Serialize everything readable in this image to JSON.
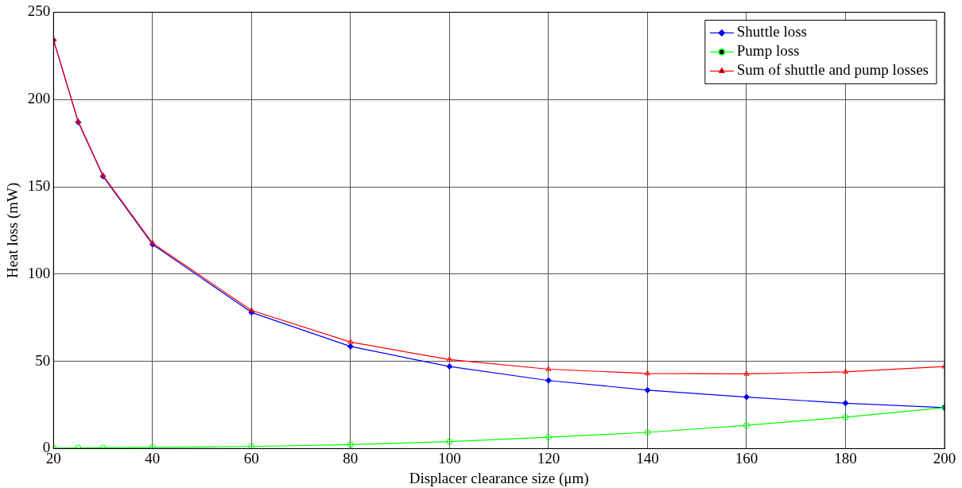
{
  "chart_data": {
    "type": "line",
    "xlabel": "Displacer clearance size (μm)",
    "ylabel": "Heat loss (mW)",
    "x": [
      20,
      25,
      30,
      40,
      60,
      80,
      100,
      120,
      140,
      160,
      180,
      200
    ],
    "series": [
      {
        "name": "Shuttle loss",
        "color": "#0000ff",
        "marker": "diamond",
        "values": [
          234,
          187,
          156,
          117,
          78,
          58.5,
          47,
          39,
          33.5,
          29.5,
          26,
          23.5
        ]
      },
      {
        "name": "Pump loss",
        "color": "#00ff00",
        "marker": "circle",
        "values": [
          0.3,
          0.4,
          0.5,
          0.7,
          1.2,
          2.3,
          4,
          6.5,
          9.3,
          13.3,
          18,
          23.5
        ]
      },
      {
        "name": "Sum of shuttle and pump losses",
        "color": "#ff0000",
        "marker": "triangle",
        "values": [
          234.3,
          187.4,
          156.5,
          117.7,
          79.2,
          61,
          51,
          45.5,
          43,
          42.8,
          44,
          47
        ]
      }
    ],
    "xlim": [
      20,
      200
    ],
    "xticks": [
      20,
      40,
      60,
      80,
      100,
      120,
      140,
      160,
      180,
      200
    ],
    "ylim": [
      0,
      250
    ],
    "yticks": [
      0,
      50,
      100,
      150,
      200,
      250
    ],
    "grid": true,
    "legend": "top right"
  }
}
